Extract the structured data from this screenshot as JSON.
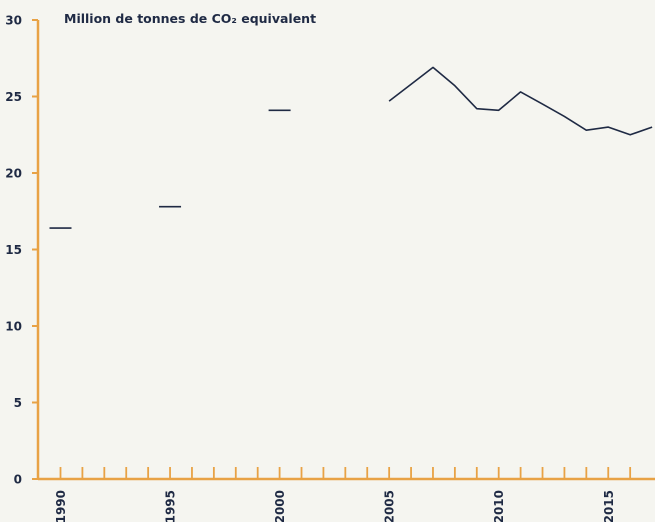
{
  "chart_data": {
    "type": "line",
    "title": "",
    "ylabel": "Million de tonnes de CO₂ equivalent",
    "xlabel": "",
    "xlim": [
      1989,
      2017
    ],
    "ylim": [
      0,
      30
    ],
    "y_ticks": [
      0,
      5,
      10,
      15,
      20,
      25,
      30
    ],
    "x_tick_labels": [
      "1990",
      "1995",
      "2000",
      "2005",
      "2010",
      "2015"
    ],
    "x_minor_ticks": [
      1990,
      1991,
      1992,
      1993,
      1994,
      1995,
      1996,
      1997,
      1998,
      1999,
      2000,
      2001,
      2002,
      2003,
      2004,
      2005,
      2006,
      2007,
      2008,
      2009,
      2010,
      2011,
      2012,
      2013,
      2014,
      2015,
      2016
    ],
    "grid": false,
    "legend": "none",
    "series": [
      {
        "points": [
          {
            "x": 1990,
            "y": 16.4
          },
          {
            "x": 1995,
            "y": 17.8
          },
          {
            "x": 2000,
            "y": 24.1
          },
          {
            "x": 2005,
            "y": 24.7
          },
          {
            "x": 2006,
            "y": 25.8
          },
          {
            "x": 2007,
            "y": 26.9
          },
          {
            "x": 2008,
            "y": 25.7
          },
          {
            "x": 2009,
            "y": 24.2
          },
          {
            "x": 2010,
            "y": 24.1
          },
          {
            "x": 2011,
            "y": 25.3
          },
          {
            "x": 2012,
            "y": 24.5
          },
          {
            "x": 2013,
            "y": 23.7
          },
          {
            "x": 2014,
            "y": 22.8
          },
          {
            "x": 2015,
            "y": 23.0
          },
          {
            "x": 2016,
            "y": 22.5
          },
          {
            "x": 2017,
            "y": 23.0
          }
        ]
      }
    ],
    "colors": {
      "axis": "#e8a245",
      "line": "#1f2a44",
      "text": "#1f2a44",
      "background": "#f5f5f0"
    }
  }
}
